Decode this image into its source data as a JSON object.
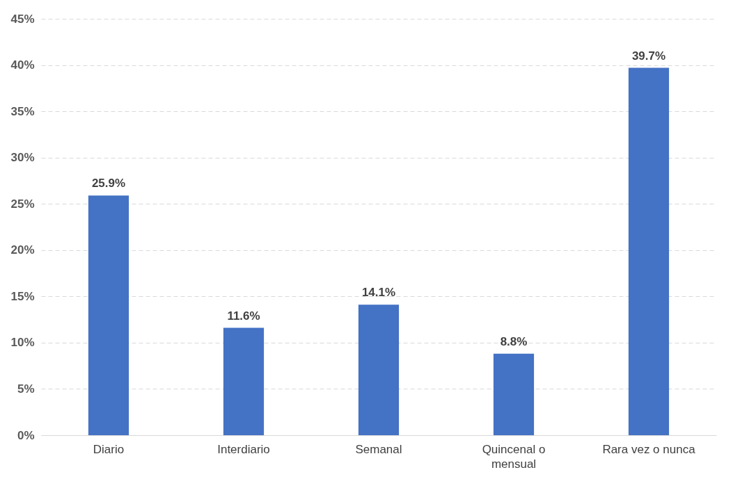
{
  "chart_data": {
    "type": "bar",
    "categories": [
      "Diario",
      "Interdiario",
      "Semanal",
      "Quincenal o mensual",
      "Rara vez o nunca"
    ],
    "values": [
      25.9,
      11.6,
      14.1,
      8.8,
      39.7
    ],
    "value_labels": [
      "25.9%",
      "11.6%",
      "14.1%",
      "8.8%",
      "39.7%"
    ],
    "color": "#4472c4",
    "ylim": [
      0,
      45
    ],
    "yticks": [
      {
        "value": 0,
        "label": "0%"
      },
      {
        "value": 5,
        "label": "5%"
      },
      {
        "value": 10,
        "label": "10%"
      },
      {
        "value": 15,
        "label": "15%"
      },
      {
        "value": 20,
        "label": "20%"
      },
      {
        "value": 25,
        "label": "25%"
      },
      {
        "value": 30,
        "label": "30%"
      },
      {
        "value": 35,
        "label": "35%"
      },
      {
        "value": 40,
        "label": "40%"
      },
      {
        "value": 45,
        "label": "45%"
      }
    ],
    "grid": "y"
  }
}
